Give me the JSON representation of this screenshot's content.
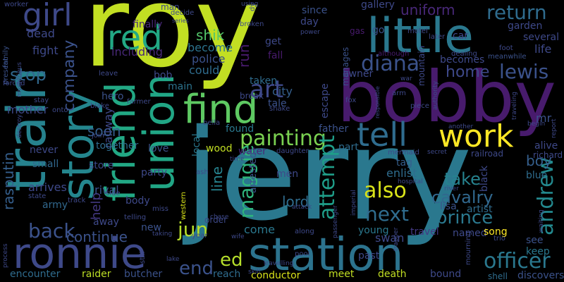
{
  "background": "#000000",
  "palette_note": "viridis",
  "words": [
    {
      "text": "roy",
      "color": "#c2df23"
    },
    {
      "text": "jerry",
      "color": "#2a788e"
    },
    {
      "text": "bobby",
      "color": "#481b6d"
    },
    {
      "text": "station",
      "color": "#2c738e"
    },
    {
      "text": "train",
      "color": "#26828e"
    },
    {
      "text": "little",
      "color": "#2a788e"
    },
    {
      "text": "ronnie",
      "color": "#3e4989"
    },
    {
      "text": "story",
      "color": "#24868e"
    },
    {
      "text": "union",
      "color": "#21a685"
    },
    {
      "text": "friend",
      "color": "#22a884"
    },
    {
      "text": "find",
      "color": "#5ec962"
    },
    {
      "text": "tell",
      "color": "#2f6c8e"
    },
    {
      "text": "work",
      "color": "#fde725"
    },
    {
      "text": "girl",
      "color": "#3e4989"
    },
    {
      "text": "red",
      "color": "#22a884"
    },
    {
      "text": "painting",
      "color": "#7ad151"
    },
    {
      "text": "return",
      "color": "#2f6c8e"
    },
    {
      "text": "diana",
      "color": "#3b528b"
    },
    {
      "text": "art",
      "color": "#3e4989"
    },
    {
      "text": "uniform",
      "color": "#482878"
    },
    {
      "text": "prince",
      "color": "#2a788e"
    },
    {
      "text": "officer",
      "color": "#2a788e"
    },
    {
      "text": "also",
      "color": "#d8e219"
    },
    {
      "text": "next",
      "color": "#2f6c8e"
    },
    {
      "text": "back",
      "color": "#3b528b"
    },
    {
      "text": "maggie",
      "color": "#2fb47c"
    },
    {
      "text": "attempt",
      "color": "#1f9e89"
    },
    {
      "text": "andrew",
      "color": "#23898e"
    },
    {
      "text": "cavalry",
      "color": "#31688e"
    },
    {
      "text": "take",
      "color": "#26828e"
    },
    {
      "text": "jun",
      "color": "#b5de2b"
    },
    {
      "text": "ed",
      "color": "#b5de2b"
    },
    {
      "text": "end",
      "color": "#3b528b"
    },
    {
      "text": "home",
      "color": "#3e4989"
    },
    {
      "text": "lewis",
      "color": "#3b528b"
    },
    {
      "text": "company",
      "color": "#3b528b"
    },
    {
      "text": "stop",
      "color": "#31688e"
    },
    {
      "text": "shik",
      "color": "#52c569"
    },
    {
      "text": "rasputin",
      "color": "#355f8d"
    },
    {
      "text": "continue",
      "color": "#3b528b"
    },
    {
      "text": "help",
      "color": "#443983"
    },
    {
      "text": "soon",
      "color": "#355f8d"
    },
    {
      "text": "boy",
      "color": "#355f8d"
    },
    {
      "text": "line",
      "color": "#26828e"
    },
    {
      "text": "lord",
      "color": "#2f6c8e"
    },
    {
      "text": "swan",
      "color": "#3e4989"
    },
    {
      "text": "come",
      "color": "#2a788e"
    },
    {
      "text": "dead",
      "color": "#3e4989"
    },
    {
      "text": "fight",
      "color": "#3e4989"
    },
    {
      "text": "including",
      "color": "#482878"
    },
    {
      "text": "become",
      "color": "#2c738e"
    },
    {
      "text": "police",
      "color": "#3b528b"
    },
    {
      "text": "could",
      "color": "#2f6c8e"
    },
    {
      "text": "run",
      "color": "#481b6d"
    },
    {
      "text": "company2",
      "color": "#2c738e"
    },
    {
      "text": "mother",
      "color": "#3e4989"
    },
    {
      "text": "army",
      "color": "#31688e"
    },
    {
      "text": "arrives",
      "color": "#3e4989"
    },
    {
      "text": "small",
      "color": "#31688e"
    },
    {
      "text": "never",
      "color": "#3e4989"
    },
    {
      "text": "hero",
      "color": "#3b528b"
    },
    {
      "text": "railway",
      "color": "#3e4989"
    },
    {
      "text": "city",
      "color": "#355f8d"
    },
    {
      "text": "father",
      "color": "#3b528b"
    },
    {
      "text": "found",
      "color": "#2a788e"
    },
    {
      "text": "wood",
      "color": "#c2df23"
    },
    {
      "text": "water",
      "color": "#482878"
    },
    {
      "text": "local",
      "color": "#2a788e"
    },
    {
      "text": "rival",
      "color": "#3b528b"
    },
    {
      "text": "store",
      "color": "#3e4989"
    },
    {
      "text": "party",
      "color": "#3e4989"
    },
    {
      "text": "together",
      "color": "#2f6c8e"
    },
    {
      "text": "love",
      "color": "#3b528b"
    },
    {
      "text": "men",
      "color": "#3e4989"
    },
    {
      "text": "arrested",
      "color": "#3b528b"
    },
    {
      "text": "enlist",
      "color": "#2f6c8e"
    },
    {
      "text": "tag",
      "color": "#355f8d"
    },
    {
      "text": "lisa",
      "color": "#3b528b"
    },
    {
      "text": "artist",
      "color": "#2f6c8e"
    },
    {
      "text": "black",
      "color": "#3e4989"
    },
    {
      "text": "blue",
      "color": "#2f6c8e"
    },
    {
      "text": "see",
      "color": "#3b528b"
    },
    {
      "text": "keep",
      "color": "#2a788e"
    },
    {
      "text": "mr",
      "color": "#3b528b"
    },
    {
      "text": "alive",
      "color": "#3e4989"
    },
    {
      "text": "richard",
      "color": "#3e4989"
    },
    {
      "text": "named",
      "color": "#3e4989"
    },
    {
      "text": "song",
      "color": "#fde725"
    },
    {
      "text": "young",
      "color": "#2a788e"
    },
    {
      "text": "travel",
      "color": "#443983"
    },
    {
      "text": "past",
      "color": "#3e4989"
    },
    {
      "text": "death",
      "color": "#c2df23"
    },
    {
      "text": "conductor",
      "color": "#d8e219"
    },
    {
      "text": "meet",
      "color": "#c2df23"
    },
    {
      "text": "reach",
      "color": "#2f6c8e"
    },
    {
      "text": "bound",
      "color": "#3e4989"
    },
    {
      "text": "shell",
      "color": "#2f6c8e"
    },
    {
      "text": "discovers",
      "color": "#3b528b"
    },
    {
      "text": "encounter",
      "color": "#2f6c8e"
    },
    {
      "text": "raider",
      "color": "#bddf26"
    },
    {
      "text": "butcher",
      "color": "#3b528b"
    },
    {
      "text": "body",
      "color": "#3e4989"
    },
    {
      "text": "away",
      "color": "#3e4989"
    },
    {
      "text": "new",
      "color": "#3b528b"
    },
    {
      "text": "bob",
      "color": "#3e4989"
    },
    {
      "text": "main",
      "color": "#2c738e"
    },
    {
      "text": "man",
      "color": "#3e4989"
    },
    {
      "text": "finally",
      "color": "#482878"
    },
    {
      "text": "since",
      "color": "#3b528b"
    },
    {
      "text": "day",
      "color": "#3e4989"
    },
    {
      "text": "gallery",
      "color": "#3e4989"
    },
    {
      "text": "get",
      "color": "#3e4989"
    },
    {
      "text": "fall",
      "color": "#481b6d"
    },
    {
      "text": "taken",
      "color": "#2f6c8e"
    },
    {
      "text": "tale",
      "color": "#3b528b"
    },
    {
      "text": "owner",
      "color": "#3e4989"
    },
    {
      "text": "manages",
      "color": "#3b528b"
    },
    {
      "text": "escape",
      "color": "#3e4989"
    },
    {
      "text": "part",
      "color": "#2f6c8e"
    },
    {
      "text": "life",
      "color": "#3e4989"
    },
    {
      "text": "garden",
      "color": "#3e4989"
    },
    {
      "text": "several",
      "color": "#3e4989"
    },
    {
      "text": "becomes",
      "color": "#3e4989"
    },
    {
      "text": "mountain",
      "color": "#3e4989"
    },
    {
      "text": "go",
      "color": "#3b528b"
    },
    {
      "text": "car",
      "color": "#3e4989"
    },
    {
      "text": "gas",
      "color": "#481b6d"
    },
    {
      "text": "later",
      "color": "#3e4989"
    },
    {
      "text": "motel",
      "color": "#3e4989"
    },
    {
      "text": "dealing",
      "color": "#3e4989"
    },
    {
      "text": "foot",
      "color": "#3e4989"
    },
    {
      "text": "meanwhile",
      "color": "#3b528b"
    },
    {
      "text": "although",
      "color": "#481b6d"
    },
    {
      "text": "worker",
      "color": "#3e4989"
    },
    {
      "text": "present",
      "color": "#3b528b"
    },
    {
      "text": "family",
      "color": "#3b528b"
    },
    {
      "text": "forced",
      "color": "#3e4989"
    },
    {
      "text": "stay",
      "color": "#3e4989"
    },
    {
      "text": "onto",
      "color": "#3e4989"
    },
    {
      "text": "blake",
      "color": "#3e4989"
    },
    {
      "text": "mysterious",
      "color": "#3e4989"
    },
    {
      "text": "leave",
      "color": "#3e4989"
    },
    {
      "text": "farmer",
      "color": "#3e4989"
    },
    {
      "text": "break",
      "color": "#3e4989"
    },
    {
      "text": "shake",
      "color": "#3e4989"
    },
    {
      "text": "bella",
      "color": "#3e4989"
    },
    {
      "text": "join",
      "color": "#3e4989"
    },
    {
      "text": "destroy",
      "color": "#3e4989"
    },
    {
      "text": "fox",
      "color": "#3e4989"
    },
    {
      "text": "arm",
      "color": "#3e4989"
    },
    {
      "text": "piece",
      "color": "#3e4989"
    },
    {
      "text": "another",
      "color": "#3e4989"
    },
    {
      "text": "railroad",
      "color": "#3e4989"
    },
    {
      "text": "mermaid",
      "color": "#3e4989"
    },
    {
      "text": "secret",
      "color": "#3e4989"
    },
    {
      "text": "daughter",
      "color": "#3e4989"
    },
    {
      "text": "time",
      "color": "#3e4989"
    },
    {
      "text": "ash",
      "color": "#3e4989"
    },
    {
      "text": "hospital",
      "color": "#3e4989"
    },
    {
      "text": "river",
      "color": "#3e4989"
    },
    {
      "text": "process",
      "color": "#3e4989"
    },
    {
      "text": "state",
      "color": "#3e4989"
    },
    {
      "text": "track",
      "color": "#3e4989"
    },
    {
      "text": "side",
      "color": "#3e4989"
    },
    {
      "text": "telling",
      "color": "#3e4989"
    },
    {
      "text": "miss",
      "color": "#3e4989"
    },
    {
      "text": "western",
      "color": "#d8e219"
    },
    {
      "text": "order",
      "color": "#3e4989"
    },
    {
      "text": "chase",
      "color": "#3e4989"
    },
    {
      "text": "wife",
      "color": "#3e4989"
    },
    {
      "text": "taking",
      "color": "#3e4989"
    },
    {
      "text": "year",
      "color": "#3e4989"
    },
    {
      "text": "along",
      "color": "#3e4989"
    },
    {
      "text": "attack",
      "color": "#3e4989"
    },
    {
      "text": "imperial",
      "color": "#3e4989"
    },
    {
      "text": "passenger",
      "color": "#3e4989"
    },
    {
      "text": "trapper",
      "color": "#3e4989"
    },
    {
      "text": "mourning",
      "color": "#3e4989"
    },
    {
      "text": "trio",
      "color": "#3e4989"
    },
    {
      "text": "waiting",
      "color": "#3e4989"
    },
    {
      "text": "still",
      "color": "#3e4989"
    },
    {
      "text": "lake",
      "color": "#3e4989"
    },
    {
      "text": "pool",
      "color": "#3e4989"
    },
    {
      "text": "skill",
      "color": "#3e4989"
    },
    {
      "text": "travelling",
      "color": "#3e4989"
    },
    {
      "text": "using",
      "color": "#3e4989"
    },
    {
      "text": "decide",
      "color": "#3e4989"
    },
    {
      "text": "series",
      "color": "#3e4989"
    },
    {
      "text": "broken",
      "color": "#3e4989"
    },
    {
      "text": "power",
      "color": "#3e4989"
    },
    {
      "text": "responsible",
      "color": "#3e4989"
    },
    {
      "text": "authority",
      "color": "#3e4989"
    },
    {
      "text": "traveling",
      "color": "#3e4989"
    },
    {
      "text": "begin",
      "color": "#3e4989"
    },
    {
      "text": "report",
      "color": "#3e4989"
    },
    {
      "text": "war",
      "color": "#3e4989"
    },
    {
      "text": "mr2",
      "color": "#3e4989"
    },
    {
      "text": "dy",
      "color": "#3e4989"
    }
  ]
}
